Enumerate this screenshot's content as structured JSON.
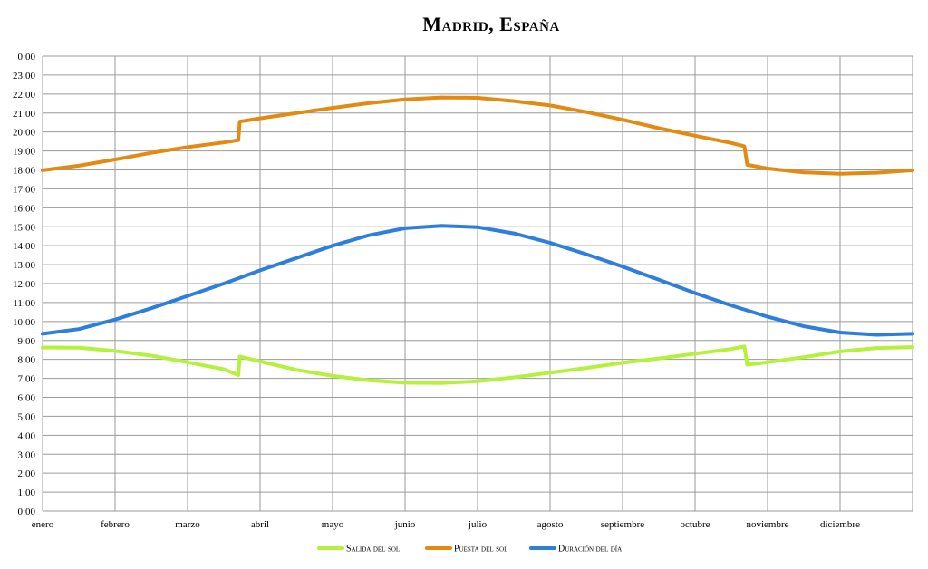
{
  "chart_data": {
    "type": "line",
    "title": "Madrid, España",
    "xlabel": "",
    "ylabel": "",
    "x_categories": [
      "enero",
      "febrero",
      "marzo",
      "abril",
      "mayo",
      "junio",
      "julio",
      "agosto",
      "septiembre",
      "octubre",
      "noviembre",
      "diciembre"
    ],
    "y_ticks": [
      "0:00",
      "1:00",
      "2:00",
      "3:00",
      "4:00",
      "5:00",
      "6:00",
      "7:00",
      "8:00",
      "9:00",
      "10:00",
      "11:00",
      "12:00",
      "13:00",
      "14:00",
      "15:00",
      "16:00",
      "17:00",
      "18:00",
      "19:00",
      "20:00",
      "21:00",
      "22:00",
      "23:00",
      "0:00"
    ],
    "ylim": [
      0,
      24
    ],
    "xlim_months": [
      0,
      12
    ],
    "grid": true,
    "legend_position": "bottom",
    "series": [
      {
        "name": "Salida del sol",
        "color": "#b5f03c",
        "points": [
          [
            0.0,
            8.63
          ],
          [
            0.5,
            8.62
          ],
          [
            1.0,
            8.45
          ],
          [
            1.5,
            8.2
          ],
          [
            2.0,
            7.85
          ],
          [
            2.5,
            7.48
          ],
          [
            2.7,
            7.17
          ],
          [
            2.72,
            8.15
          ],
          [
            3.0,
            7.9
          ],
          [
            3.5,
            7.45
          ],
          [
            4.0,
            7.13
          ],
          [
            4.5,
            6.9
          ],
          [
            5.0,
            6.77
          ],
          [
            5.5,
            6.75
          ],
          [
            6.0,
            6.85
          ],
          [
            6.5,
            7.05
          ],
          [
            7.0,
            7.3
          ],
          [
            7.5,
            7.55
          ],
          [
            8.0,
            7.82
          ],
          [
            8.5,
            8.05
          ],
          [
            9.0,
            8.3
          ],
          [
            9.5,
            8.55
          ],
          [
            9.68,
            8.68
          ],
          [
            9.72,
            7.72
          ],
          [
            10.0,
            7.85
          ],
          [
            10.5,
            8.12
          ],
          [
            11.0,
            8.42
          ],
          [
            11.5,
            8.6
          ],
          [
            12.0,
            8.65
          ]
        ]
      },
      {
        "name": "Puesta del sol",
        "color": "#e28a12",
        "points": [
          [
            0.0,
            17.98
          ],
          [
            0.5,
            18.22
          ],
          [
            1.0,
            18.55
          ],
          [
            1.5,
            18.9
          ],
          [
            2.0,
            19.2
          ],
          [
            2.5,
            19.45
          ],
          [
            2.7,
            19.57
          ],
          [
            2.72,
            20.55
          ],
          [
            3.0,
            20.72
          ],
          [
            3.5,
            21.0
          ],
          [
            4.0,
            21.27
          ],
          [
            4.5,
            21.52
          ],
          [
            5.0,
            21.72
          ],
          [
            5.5,
            21.82
          ],
          [
            6.0,
            21.8
          ],
          [
            6.5,
            21.63
          ],
          [
            7.0,
            21.4
          ],
          [
            7.5,
            21.05
          ],
          [
            8.0,
            20.65
          ],
          [
            8.5,
            20.2
          ],
          [
            9.0,
            19.8
          ],
          [
            9.5,
            19.42
          ],
          [
            9.68,
            19.25
          ],
          [
            9.72,
            18.27
          ],
          [
            10.0,
            18.07
          ],
          [
            10.5,
            17.87
          ],
          [
            11.0,
            17.8
          ],
          [
            11.5,
            17.85
          ],
          [
            12.0,
            17.98
          ]
        ]
      },
      {
        "name": "Duración del día",
        "color": "#2e7fdc",
        "points": [
          [
            0.0,
            9.35
          ],
          [
            0.5,
            9.6
          ],
          [
            1.0,
            10.1
          ],
          [
            1.5,
            10.7
          ],
          [
            2.0,
            11.35
          ],
          [
            2.5,
            12.0
          ],
          [
            3.0,
            12.7
          ],
          [
            3.5,
            13.35
          ],
          [
            4.0,
            14.0
          ],
          [
            4.5,
            14.55
          ],
          [
            5.0,
            14.92
          ],
          [
            5.5,
            15.05
          ],
          [
            6.0,
            14.98
          ],
          [
            6.5,
            14.65
          ],
          [
            7.0,
            14.15
          ],
          [
            7.5,
            13.55
          ],
          [
            8.0,
            12.9
          ],
          [
            8.5,
            12.2
          ],
          [
            9.0,
            11.5
          ],
          [
            9.5,
            10.85
          ],
          [
            10.0,
            10.25
          ],
          [
            10.5,
            9.75
          ],
          [
            11.0,
            9.42
          ],
          [
            11.5,
            9.3
          ],
          [
            12.0,
            9.35
          ]
        ]
      }
    ]
  }
}
